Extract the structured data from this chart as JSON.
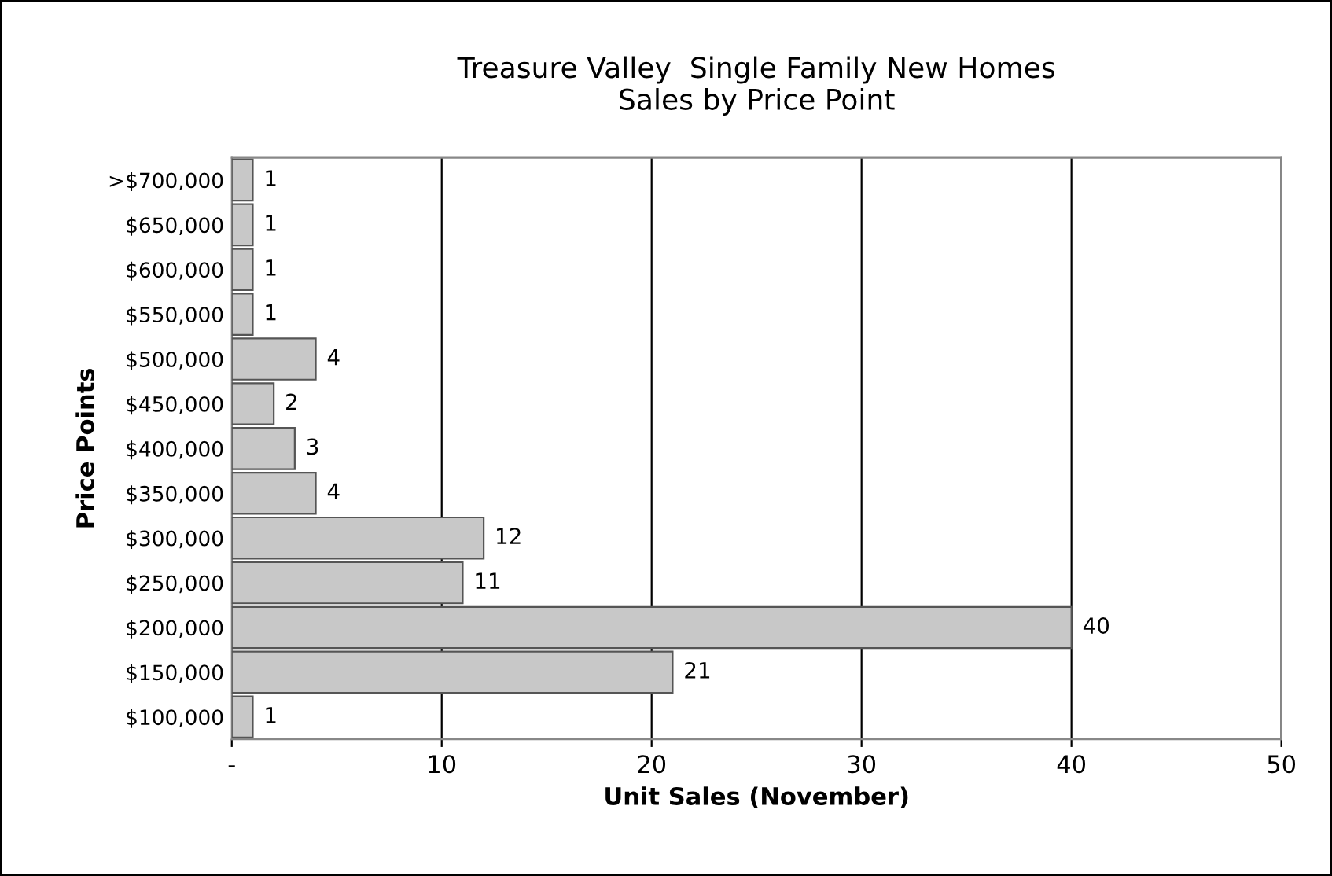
{
  "chart_data": {
    "type": "bar",
    "orientation": "horizontal",
    "title": "Treasure Valley  Single Family New Homes\nSales by Price Point",
    "xlabel": "Unit Sales (November)",
    "ylabel": "Price Points",
    "categories": [
      ">$700,000",
      "$650,000",
      "$600,000",
      "$550,000",
      "$500,000",
      "$450,000",
      "$400,000",
      "$350,000",
      "$300,000",
      "$250,000",
      "$200,000",
      "$150,000",
      "$100,000"
    ],
    "values": [
      1,
      1,
      1,
      1,
      4,
      2,
      3,
      4,
      12,
      11,
      40,
      21,
      1
    ],
    "color": "#c8c8c8",
    "xlim": [
      0,
      50
    ],
    "xticks": [
      {
        "value": 0,
        "label": "-"
      },
      10,
      20,
      30,
      40,
      50
    ],
    "grid": "x",
    "data_labels": true
  }
}
